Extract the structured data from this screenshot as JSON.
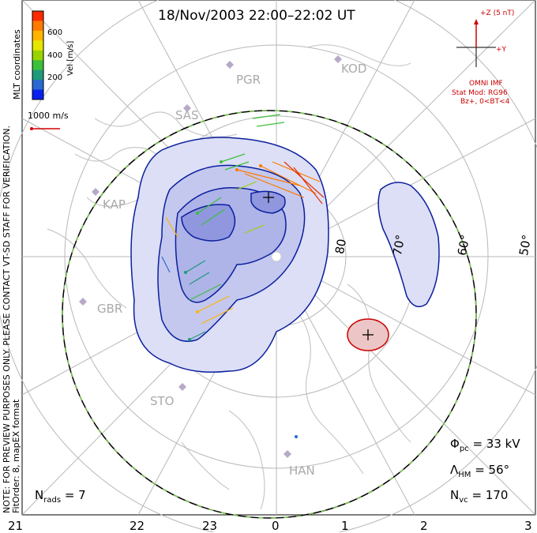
{
  "title": "18/Nov/2003 22:00–22:02 UT",
  "coordinates_label": "MLT coordinates",
  "note_line1": "NOTE: FOR PREVIEW PURPOSES ONLY. PLEASE CONTACT VT-SD STAFF FOR VERIFICATION.",
  "note_line2": "FitOrder: 8, mapEX format",
  "colorbar": {
    "label": "Vel [m/s]",
    "ticks": [
      "600",
      "400",
      "200"
    ],
    "colors": [
      "#ff2a00",
      "#ff7a00",
      "#ffb400",
      "#e6e600",
      "#9ad400",
      "#3cc03c",
      "#1f9a7a",
      "#2a6ad0",
      "#0a20f0"
    ]
  },
  "velocity_reference": "1000 m/s",
  "imf": {
    "z_label": "+Z (5 nT)",
    "y_label": "+Y",
    "source": "OMNI IMF",
    "model": "Stat Mod: RG96",
    "conditions": "Bz+, 0<BT<4"
  },
  "stats": {
    "phi_pc": "= 33 kV",
    "lambda_hm": "= 56°",
    "n_vc": "= 170",
    "n_rads": "= 7"
  },
  "stations": [
    "PGR",
    "KOD",
    "SAS",
    "KAP",
    "GBR",
    "STO",
    "HAN"
  ],
  "latitudes": [
    "80",
    "70°",
    "60°",
    "50°"
  ],
  "mlt_ticks": [
    "21",
    "22",
    "23",
    "0",
    "1",
    "2",
    "3"
  ],
  "colors": {
    "contour": "#0b1f9e",
    "convection_fill": "#c9cdf0",
    "convection_fill_dark": "#8f96e0",
    "positive_cell": "#e8b8b8",
    "positive_contour": "#cc0000",
    "grid": "#b8b8b8",
    "coast": "#c8c8c8",
    "hmb_green": "#7ac74f",
    "imf_red": "#d40000"
  }
}
